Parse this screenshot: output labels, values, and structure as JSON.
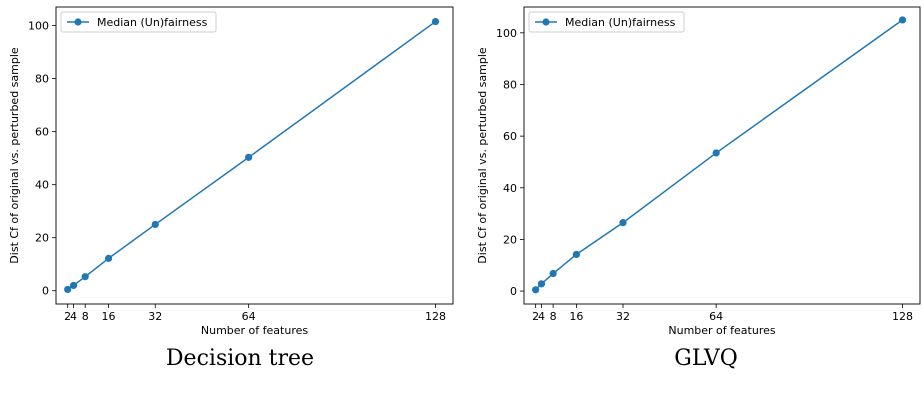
{
  "chart_data": [
    {
      "type": "line",
      "caption": "Decision tree",
      "xlabel": "Number of features",
      "ylabel": "Dist Cf of original vs. perturbed sample",
      "xticks": [
        2,
        4,
        8,
        16,
        32,
        64,
        128
      ],
      "xtick_labels": [
        "2",
        "4",
        "8",
        "16",
        "32",
        "64",
        "128"
      ],
      "yticks": [
        0,
        20,
        40,
        60,
        80,
        100
      ],
      "xlim": [
        -2,
        134
      ],
      "ylim": [
        -5,
        107
      ],
      "legend_position": "upper-left",
      "series": [
        {
          "name": "Median (Un)fairness",
          "color": "#1f77b4",
          "x": [
            2,
            4,
            8,
            16,
            32,
            64,
            128
          ],
          "y": [
            0.5,
            2.0,
            5.3,
            12.2,
            25.0,
            50.3,
            101.5
          ]
        }
      ]
    },
    {
      "type": "line",
      "caption": "GLVQ",
      "xlabel": "Number of features",
      "ylabel": "Dist Cf of original vs. perturbed sample",
      "xticks": [
        2,
        4,
        8,
        16,
        32,
        64,
        128
      ],
      "xtick_labels": [
        "2",
        "4",
        "8",
        "16",
        "32",
        "64",
        "128"
      ],
      "yticks": [
        0,
        20,
        40,
        60,
        80,
        100
      ],
      "xlim": [
        -2,
        134
      ],
      "ylim": [
        -5,
        110
      ],
      "legend_position": "upper-left",
      "series": [
        {
          "name": "Median (Un)fairness",
          "color": "#1f77b4",
          "x": [
            2,
            4,
            8,
            16,
            32,
            64,
            128
          ],
          "y": [
            0.5,
            2.8,
            6.8,
            14.2,
            26.5,
            53.5,
            105.0
          ]
        }
      ]
    }
  ]
}
